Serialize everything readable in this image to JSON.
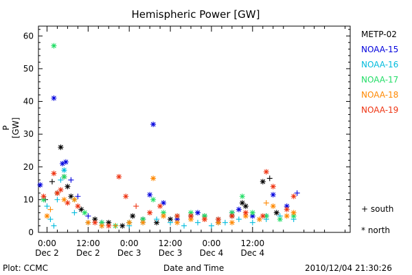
{
  "chart_data": {
    "type": "scatter",
    "title": "Hemispheric Power [GW]",
    "xlabel": "Date and Time",
    "ylabel": "P [GW]",
    "x_unit": "hours from 2010-12-02 00:00",
    "xlim": [
      -2.5,
      88.5
    ],
    "ylim": [
      0,
      63
    ],
    "yticks": [
      0,
      10,
      20,
      30,
      40,
      50,
      60
    ],
    "xticks": [
      {
        "x": 0,
        "time": "0:00",
        "date": "Dec 2"
      },
      {
        "x": 12,
        "time": "12:00",
        "date": "Dec 2"
      },
      {
        "x": 24,
        "time": "0:00",
        "date": "Dec 3"
      },
      {
        "x": 36,
        "time": "12:00",
        "date": "Dec 3"
      },
      {
        "x": 48,
        "time": "0:00",
        "date": "Dec 4"
      },
      {
        "x": 60,
        "time": "12:00",
        "date": "Dec 4"
      }
    ],
    "marker_legend": [
      {
        "symbol": "+",
        "label": "south"
      },
      {
        "symbol": "*",
        "label": "north"
      }
    ],
    "series": [
      {
        "name": "METP-02",
        "color": "#000000",
        "points": [
          [
            -0.5,
            10,
            "+"
          ],
          [
            1.5,
            15.5,
            "+"
          ],
          [
            3,
            12,
            "*"
          ],
          [
            4,
            26,
            "*"
          ],
          [
            5,
            17,
            "*"
          ],
          [
            6,
            14,
            "*"
          ],
          [
            7,
            11,
            "*"
          ],
          [
            10,
            7,
            "*"
          ],
          [
            14,
            4,
            "*"
          ],
          [
            18,
            3,
            "*"
          ],
          [
            22,
            2,
            "*"
          ],
          [
            25,
            5,
            "*"
          ],
          [
            28,
            4,
            "*"
          ],
          [
            32,
            3,
            "*"
          ],
          [
            36,
            4,
            "*"
          ],
          [
            42,
            5,
            "*"
          ],
          [
            46,
            5,
            "*"
          ],
          [
            50,
            3,
            "*"
          ],
          [
            54,
            5,
            "*"
          ],
          [
            57,
            9,
            "*"
          ],
          [
            58,
            8,
            "*"
          ],
          [
            63,
            15.5,
            "*"
          ],
          [
            65,
            16.5,
            "+"
          ],
          [
            67,
            6,
            "*"
          ]
        ]
      },
      {
        "name": "NOAA-15",
        "color": "#0000dd",
        "points": [
          [
            -2,
            14.5,
            "*"
          ],
          [
            2,
            41,
            "*"
          ],
          [
            3,
            12,
            "*"
          ],
          [
            4.5,
            21,
            "*"
          ],
          [
            5.5,
            21.5,
            "*"
          ],
          [
            7,
            16,
            "+"
          ],
          [
            9,
            11,
            "+"
          ],
          [
            12,
            5,
            "+"
          ],
          [
            16,
            3,
            "+"
          ],
          [
            20,
            2,
            "+"
          ],
          [
            24,
            3,
            "+"
          ],
          [
            28,
            4,
            "+"
          ],
          [
            30,
            11.5,
            "*"
          ],
          [
            31,
            33,
            "*"
          ],
          [
            34,
            9,
            "*"
          ],
          [
            38,
            4,
            "*"
          ],
          [
            44,
            6,
            "*"
          ],
          [
            50,
            4,
            "*"
          ],
          [
            54,
            6,
            "*"
          ],
          [
            56,
            7,
            "*"
          ],
          [
            60,
            5,
            "*"
          ],
          [
            64,
            5,
            "+"
          ],
          [
            66,
            11.5,
            "*"
          ],
          [
            70,
            8,
            "*"
          ],
          [
            73,
            12,
            "+"
          ]
        ]
      },
      {
        "name": "NOAA-16",
        "color": "#00bbdd",
        "points": [
          [
            0,
            8,
            "+"
          ],
          [
            1,
            4,
            "+"
          ],
          [
            2,
            2,
            "+"
          ],
          [
            3,
            10,
            "+"
          ],
          [
            4,
            16,
            "+"
          ],
          [
            5,
            19,
            "*"
          ],
          [
            8,
            6,
            "+"
          ],
          [
            12,
            3,
            "+"
          ],
          [
            16,
            2,
            "+"
          ],
          [
            20,
            2,
            "+"
          ],
          [
            24,
            2,
            "+"
          ],
          [
            28,
            3,
            "+"
          ],
          [
            32,
            4,
            "+"
          ],
          [
            36,
            3,
            "+"
          ],
          [
            40,
            2,
            "+"
          ],
          [
            44,
            3,
            "+"
          ],
          [
            48,
            2,
            "+"
          ],
          [
            52,
            3,
            "+"
          ],
          [
            56,
            4,
            "+"
          ],
          [
            60,
            3,
            "+"
          ],
          [
            64,
            4,
            "+"
          ],
          [
            68,
            5,
            "+"
          ],
          [
            72,
            4,
            "+"
          ]
        ]
      },
      {
        "name": "NOAA-17",
        "color": "#22dd66",
        "points": [
          [
            -1,
            10,
            "*"
          ],
          [
            2,
            57,
            "*"
          ],
          [
            3,
            12,
            "*"
          ],
          [
            5,
            17,
            "*"
          ],
          [
            8,
            10,
            "*"
          ],
          [
            11,
            6,
            "*"
          ],
          [
            16,
            3,
            "*"
          ],
          [
            20,
            2,
            "*"
          ],
          [
            24,
            3,
            "*"
          ],
          [
            28,
            4,
            "*"
          ],
          [
            31,
            10,
            "*"
          ],
          [
            34,
            6,
            "*"
          ],
          [
            38,
            5,
            "*"
          ],
          [
            42,
            6,
            "*"
          ],
          [
            46,
            5,
            "*"
          ],
          [
            50,
            4,
            "*"
          ],
          [
            54,
            6,
            "*"
          ],
          [
            57,
            11,
            "*"
          ],
          [
            60,
            6,
            "*"
          ],
          [
            64,
            5,
            "*"
          ],
          [
            68,
            4,
            "*"
          ],
          [
            72,
            5,
            "*"
          ]
        ]
      },
      {
        "name": "NOAA-18",
        "color": "#ff8800",
        "points": [
          [
            0,
            5,
            "*"
          ],
          [
            1,
            7,
            "+"
          ],
          [
            3,
            12,
            "*"
          ],
          [
            5,
            10,
            "*"
          ],
          [
            8,
            10,
            "*"
          ],
          [
            12,
            3,
            "*"
          ],
          [
            16,
            2,
            "*"
          ],
          [
            20,
            2,
            "+"
          ],
          [
            24,
            3,
            "*"
          ],
          [
            28,
            3,
            "*"
          ],
          [
            31,
            16.5,
            "*"
          ],
          [
            34,
            5,
            "*"
          ],
          [
            38,
            3,
            "*"
          ],
          [
            42,
            4,
            "*"
          ],
          [
            46,
            4,
            "*"
          ],
          [
            50,
            3,
            "*"
          ],
          [
            54,
            3,
            "*"
          ],
          [
            58,
            5,
            "*"
          ],
          [
            62,
            4,
            "*"
          ],
          [
            64,
            9,
            "+"
          ],
          [
            66,
            8,
            "*"
          ],
          [
            70,
            5,
            "*"
          ],
          [
            72,
            6,
            "*"
          ]
        ]
      },
      {
        "name": "NOAA-19",
        "color": "#ee3311",
        "points": [
          [
            -1,
            11,
            "*"
          ],
          [
            2,
            18,
            "*"
          ],
          [
            3,
            12,
            "*"
          ],
          [
            4,
            13,
            "*"
          ],
          [
            6,
            9,
            "*"
          ],
          [
            9,
            8,
            "*"
          ],
          [
            14,
            3,
            "*"
          ],
          [
            18,
            2,
            "*"
          ],
          [
            21,
            17,
            "*"
          ],
          [
            23,
            11,
            "*"
          ],
          [
            26,
            8,
            "+"
          ],
          [
            30,
            6,
            "*"
          ],
          [
            33,
            8,
            "*"
          ],
          [
            38,
            5,
            "*"
          ],
          [
            42,
            5,
            "*"
          ],
          [
            46,
            4,
            "*"
          ],
          [
            50,
            4,
            "*"
          ],
          [
            54,
            5,
            "*"
          ],
          [
            58,
            6,
            "*"
          ],
          [
            63,
            5,
            "*"
          ],
          [
            64,
            18.5,
            "*"
          ],
          [
            66,
            14,
            "*"
          ],
          [
            70,
            7,
            "*"
          ],
          [
            72,
            11,
            "*"
          ]
        ]
      }
    ]
  },
  "footer": {
    "left": "Plot: CCMC",
    "center": "Date and Time",
    "right": "2010/12/04 21:30:26"
  }
}
